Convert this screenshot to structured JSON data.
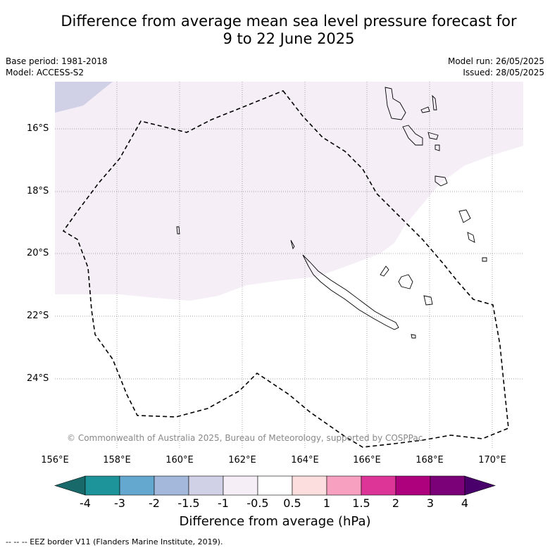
{
  "title": {
    "line1": "Difference from average mean sea level pressure forecast for",
    "line2": "9 to 22 June 2025"
  },
  "meta": {
    "base_period": "Base period: 1981-2018",
    "model": "Model: ACCESS-S2",
    "model_run": "Model run: 26/05/2025",
    "issued": "Issued: 28/05/2025"
  },
  "map": {
    "lat_labels": [
      "16°S",
      "18°S",
      "20°S",
      "22°S",
      "24°S"
    ],
    "lon_labels": [
      "156°E",
      "158°E",
      "160°E",
      "162°E",
      "164°E",
      "166°E",
      "168°E",
      "170°E"
    ],
    "copyright": "© Commonwealth of Australia 2025, Bureau of Meteorology, supported by COSPPac",
    "fill_colors": {
      "minus_1_5_to_minus_1": "#d0d0e6",
      "minus_1_to_minus_0_5": "#f5eef7",
      "neutral": "#ffffff"
    }
  },
  "colorbar": {
    "ticks": [
      "-4",
      "-3",
      "-2",
      "-1.5",
      "-1",
      "-0.5",
      "0.5",
      "1",
      "1.5",
      "2",
      "3",
      "4"
    ],
    "colors": [
      "#186a6a",
      "#1c9499",
      "#64a8d0",
      "#a4b8dc",
      "#d0d0e6",
      "#f5eef7",
      "#ffffff",
      "#fddede",
      "#f8a0c0",
      "#dd3497",
      "#ae017e",
      "#7a0177",
      "#49006a"
    ],
    "title": "Difference from average (hPa)"
  },
  "footer": "--  --  -- EEZ border V11 (Flanders Marine Institute, 2019)."
}
